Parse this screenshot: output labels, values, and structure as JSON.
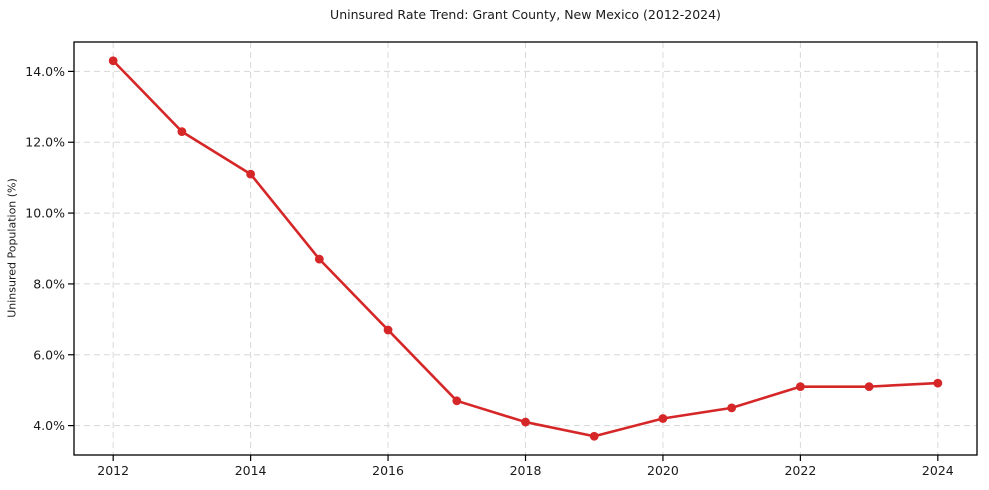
{
  "chart_data": {
    "type": "line",
    "title": "Uninsured Rate Trend: Grant County, New Mexico (2012-2024)",
    "ylabel": "Uninsured Population (%)",
    "x": [
      2012,
      2013,
      2014,
      2015,
      2016,
      2017,
      2018,
      2019,
      2020,
      2021,
      2022,
      2023,
      2024
    ],
    "series": [
      {
        "name": "Uninsured rate",
        "values": [
          14.3,
          12.3,
          11.1,
          8.7,
          6.7,
          4.7,
          4.1,
          3.7,
          4.2,
          4.5,
          5.1,
          5.1,
          5.2
        ]
      }
    ],
    "xticks": [
      2012,
      2014,
      2016,
      2018,
      2020,
      2022,
      2024
    ],
    "xtick_labels": [
      "2012",
      "2014",
      "2016",
      "2018",
      "2020",
      "2022",
      "2024"
    ],
    "yticks": [
      4,
      6,
      8,
      10,
      12,
      14
    ],
    "ytick_labels": [
      "4.0%",
      "6.0%",
      "8.0%",
      "10.0%",
      "12.0%",
      "14.0%"
    ],
    "xlim": [
      2011.43,
      2024.57
    ],
    "ylim": [
      3.17,
      14.83
    ],
    "grid": true,
    "grid_style": "dashed",
    "legend": "none",
    "line_color": "#d62728",
    "marker": "circle",
    "grid_color": "#d8d8d8",
    "axis_color": "#000000"
  }
}
